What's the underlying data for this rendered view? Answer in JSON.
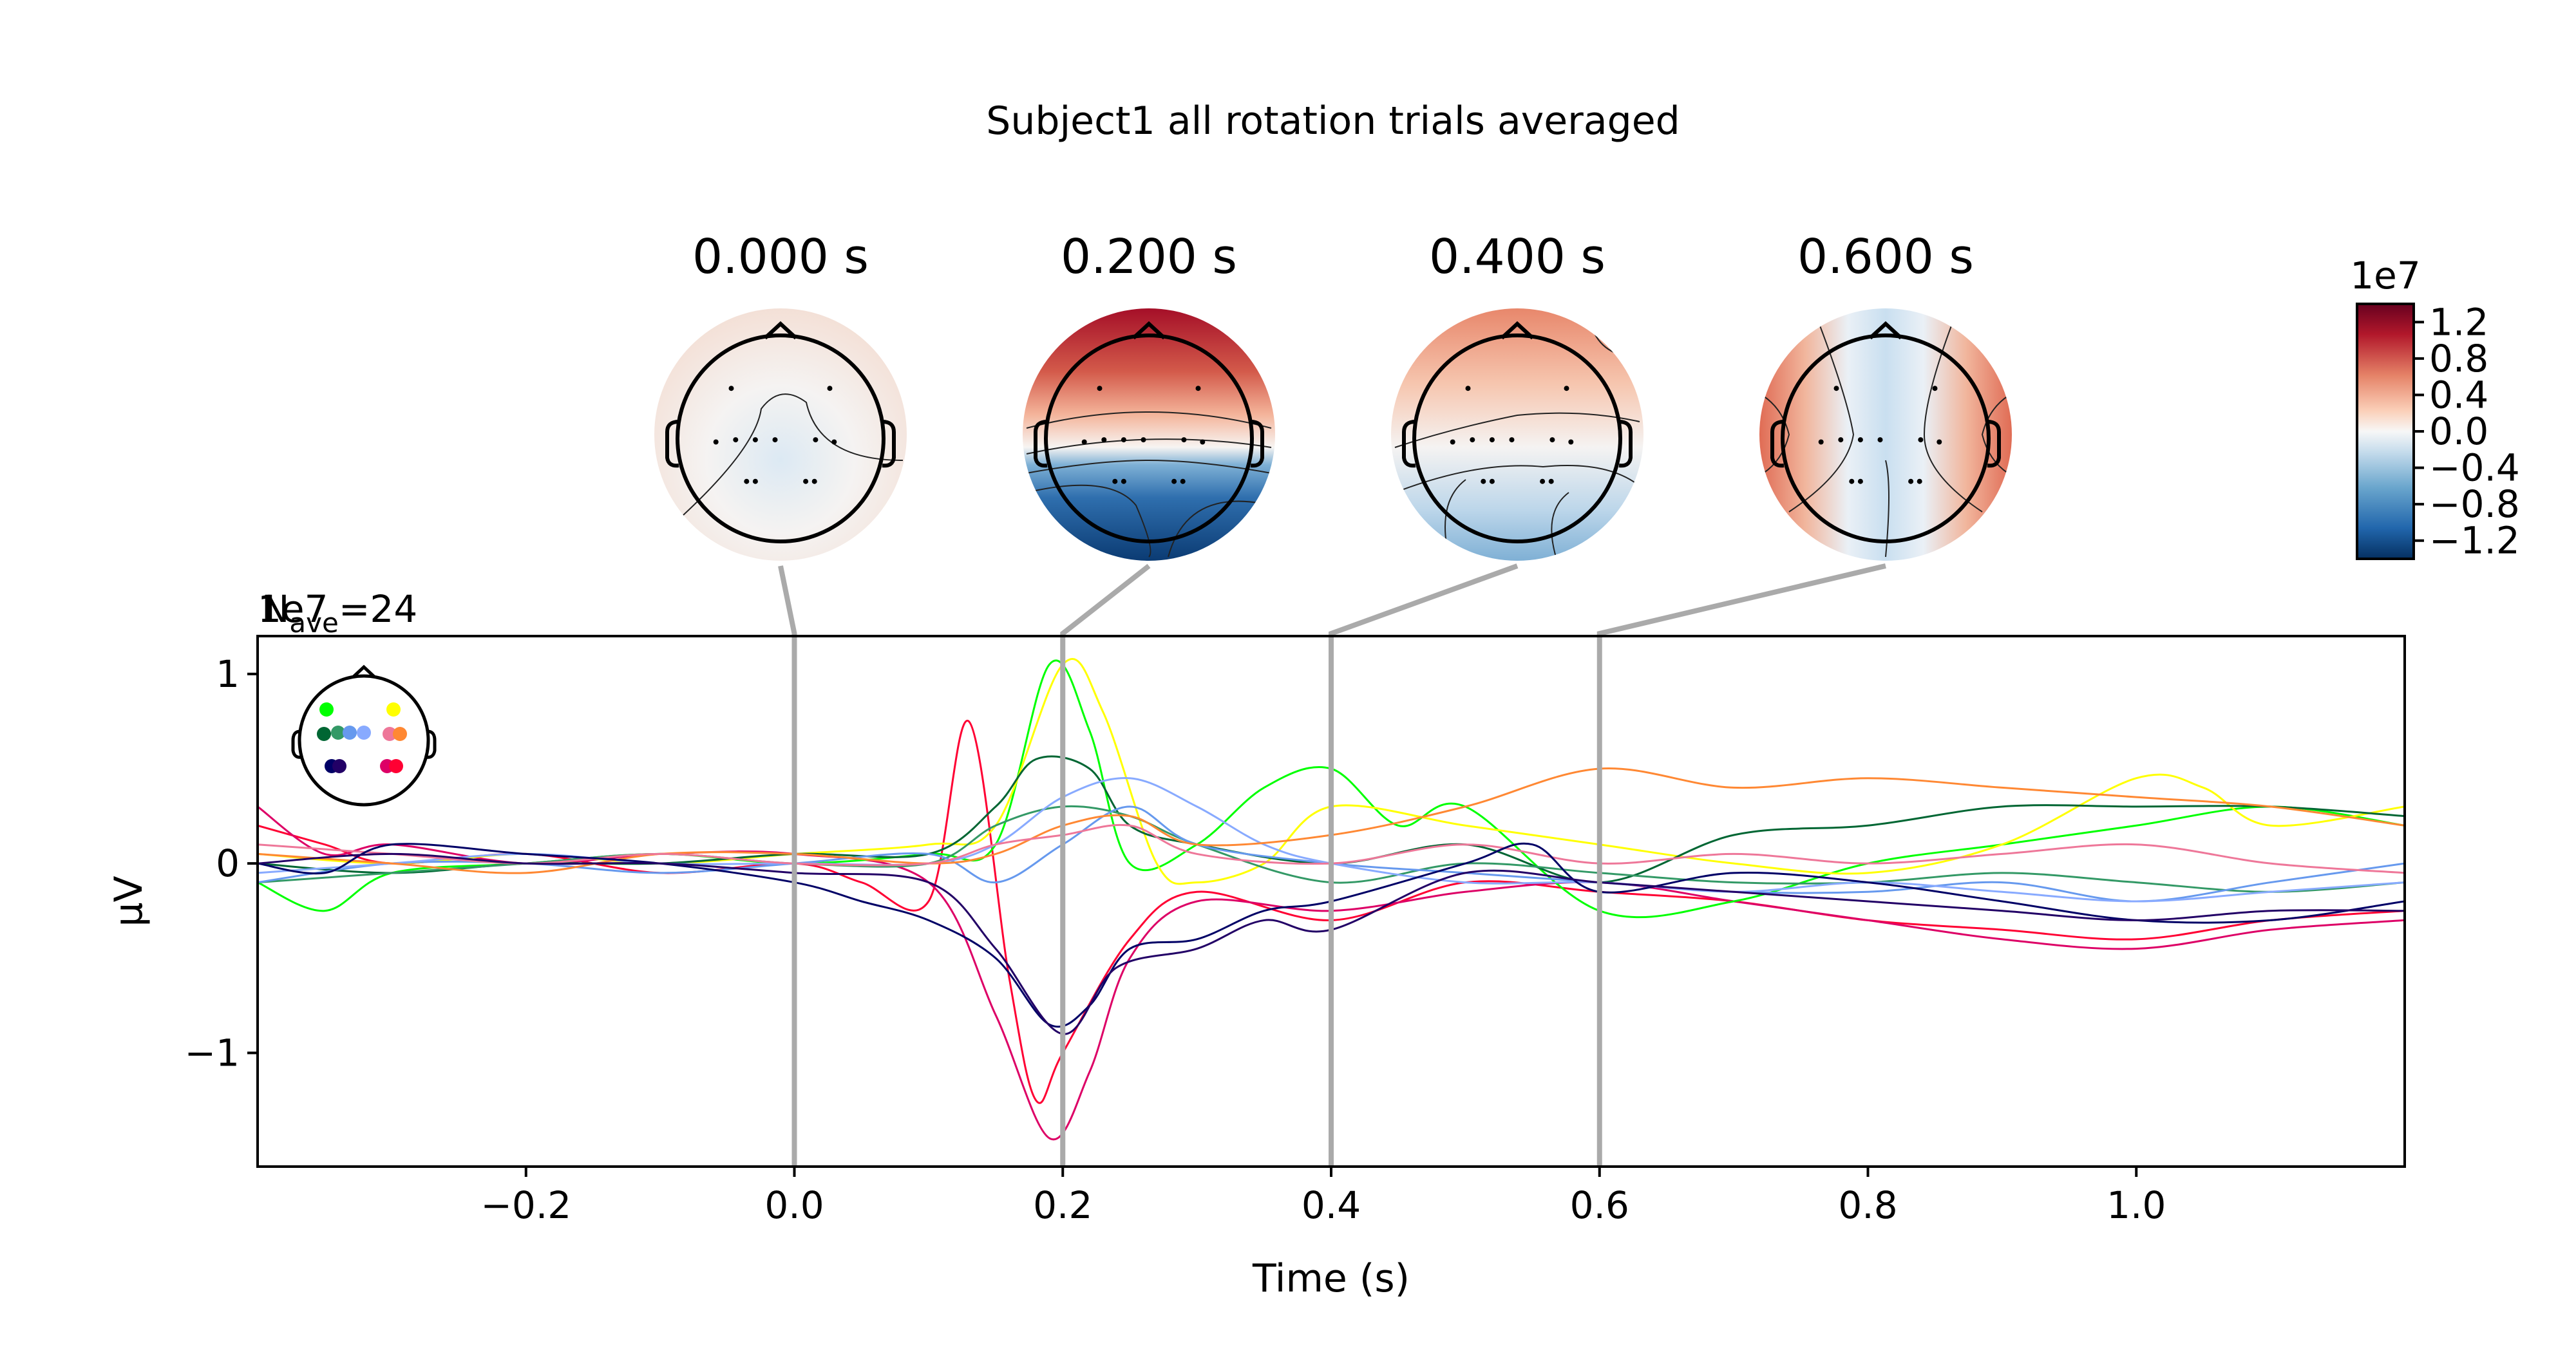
{
  "chart_data": {
    "type": "line",
    "title": "Subject1 all rotation trials averaged",
    "xlabel": "Time (s)",
    "ylabel": "µV",
    "xlim": [
      -0.4,
      1.2
    ],
    "ylim": [
      -1.6,
      1.2
    ],
    "y_scale_label": "1e7",
    "nave_label": "N",
    "nave_sub": "ave",
    "nave_value": "=24",
    "x_ticks": [
      -0.2,
      0.0,
      0.2,
      0.4,
      0.6,
      0.8,
      1.0
    ],
    "x_tick_labels": [
      "−0.2",
      "0.0",
      "0.2",
      "0.4",
      "0.6",
      "0.8",
      "1.0"
    ],
    "y_ticks": [
      -1,
      0,
      1
    ],
    "y_tick_labels": [
      "−1",
      "0",
      "1"
    ],
    "grid": false,
    "legend": "head inset top-left with colored sensor dots",
    "time_markers": [
      0.0,
      0.2,
      0.4,
      0.6
    ],
    "marker_color": "#aaaaaa",
    "series": [
      {
        "color": "#ff0033",
        "points": [
          [
            -0.4,
            0.2
          ],
          [
            -0.35,
            0.1
          ],
          [
            -0.3,
            0.0
          ],
          [
            -0.2,
            0.05
          ],
          [
            -0.1,
            -0.05
          ],
          [
            0.0,
            0.0
          ],
          [
            0.05,
            -0.1
          ],
          [
            0.1,
            -0.2
          ],
          [
            0.13,
            0.75
          ],
          [
            0.16,
            -0.6
          ],
          [
            0.18,
            -1.25
          ],
          [
            0.2,
            -1.0
          ],
          [
            0.25,
            -0.4
          ],
          [
            0.3,
            -0.15
          ],
          [
            0.4,
            -0.3
          ],
          [
            0.5,
            -0.1
          ],
          [
            0.6,
            -0.15
          ],
          [
            0.7,
            -0.2
          ],
          [
            0.8,
            -0.3
          ],
          [
            0.9,
            -0.35
          ],
          [
            1.0,
            -0.4
          ],
          [
            1.1,
            -0.3
          ],
          [
            1.2,
            -0.25
          ]
        ]
      },
      {
        "color": "#dd0066",
        "points": [
          [
            -0.4,
            0.3
          ],
          [
            -0.35,
            0.05
          ],
          [
            -0.3,
            0.1
          ],
          [
            -0.2,
            0.0
          ],
          [
            -0.1,
            0.05
          ],
          [
            0.0,
            0.05
          ],
          [
            0.1,
            -0.1
          ],
          [
            0.15,
            -0.8
          ],
          [
            0.19,
            -1.45
          ],
          [
            0.22,
            -1.1
          ],
          [
            0.25,
            -0.5
          ],
          [
            0.3,
            -0.2
          ],
          [
            0.4,
            -0.25
          ],
          [
            0.5,
            -0.15
          ],
          [
            0.6,
            -0.1
          ],
          [
            0.7,
            -0.2
          ],
          [
            0.8,
            -0.3
          ],
          [
            0.9,
            -0.4
          ],
          [
            1.0,
            -0.45
          ],
          [
            1.1,
            -0.35
          ],
          [
            1.2,
            -0.3
          ]
        ]
      },
      {
        "color": "#00ff00",
        "points": [
          [
            -0.4,
            -0.1
          ],
          [
            -0.35,
            -0.25
          ],
          [
            -0.3,
            -0.05
          ],
          [
            -0.2,
            0.0
          ],
          [
            -0.1,
            0.05
          ],
          [
            0.0,
            0.0
          ],
          [
            0.1,
            0.05
          ],
          [
            0.15,
            0.1
          ],
          [
            0.19,
            1.05
          ],
          [
            0.22,
            0.7
          ],
          [
            0.25,
            0.0
          ],
          [
            0.3,
            0.1
          ],
          [
            0.35,
            0.4
          ],
          [
            0.4,
            0.5
          ],
          [
            0.45,
            0.2
          ],
          [
            0.5,
            0.3
          ],
          [
            0.6,
            -0.25
          ],
          [
            0.7,
            -0.2
          ],
          [
            0.8,
            0.0
          ],
          [
            0.9,
            0.1
          ],
          [
            1.0,
            0.2
          ],
          [
            1.1,
            0.3
          ],
          [
            1.2,
            0.2
          ]
        ]
      },
      {
        "color": "#ffff00",
        "points": [
          [
            -0.4,
            0.05
          ],
          [
            -0.3,
            0.0
          ],
          [
            -0.2,
            0.05
          ],
          [
            -0.1,
            0.0
          ],
          [
            0.0,
            0.05
          ],
          [
            0.1,
            0.1
          ],
          [
            0.15,
            0.2
          ],
          [
            0.2,
            1.05
          ],
          [
            0.23,
            0.8
          ],
          [
            0.27,
            0.0
          ],
          [
            0.3,
            -0.1
          ],
          [
            0.35,
            0.0
          ],
          [
            0.4,
            0.3
          ],
          [
            0.5,
            0.2
          ],
          [
            0.6,
            0.1
          ],
          [
            0.7,
            0.0
          ],
          [
            0.8,
            -0.05
          ],
          [
            0.9,
            0.1
          ],
          [
            1.0,
            0.45
          ],
          [
            1.05,
            0.4
          ],
          [
            1.1,
            0.2
          ],
          [
            1.2,
            0.3
          ]
        ]
      },
      {
        "color": "#006633",
        "points": [
          [
            -0.4,
            0.0
          ],
          [
            -0.3,
            -0.05
          ],
          [
            -0.2,
            0.0
          ],
          [
            -0.1,
            0.0
          ],
          [
            0.0,
            0.05
          ],
          [
            0.1,
            0.05
          ],
          [
            0.15,
            0.3
          ],
          [
            0.18,
            0.55
          ],
          [
            0.22,
            0.5
          ],
          [
            0.25,
            0.2
          ],
          [
            0.3,
            0.1
          ],
          [
            0.4,
            0.0
          ],
          [
            0.5,
            0.1
          ],
          [
            0.6,
            -0.1
          ],
          [
            0.7,
            0.15
          ],
          [
            0.8,
            0.2
          ],
          [
            0.9,
            0.3
          ],
          [
            1.0,
            0.3
          ],
          [
            1.1,
            0.3
          ],
          [
            1.2,
            0.25
          ]
        ]
      },
      {
        "color": "#339966",
        "points": [
          [
            -0.4,
            -0.1
          ],
          [
            -0.3,
            -0.05
          ],
          [
            -0.2,
            0.0
          ],
          [
            -0.1,
            0.05
          ],
          [
            0.0,
            0.0
          ],
          [
            0.1,
            0.0
          ],
          [
            0.15,
            0.2
          ],
          [
            0.2,
            0.3
          ],
          [
            0.25,
            0.25
          ],
          [
            0.3,
            0.1
          ],
          [
            0.4,
            -0.1
          ],
          [
            0.5,
            0.0
          ],
          [
            0.6,
            -0.05
          ],
          [
            0.7,
            -0.1
          ],
          [
            0.8,
            -0.1
          ],
          [
            0.9,
            -0.05
          ],
          [
            1.0,
            -0.1
          ],
          [
            1.1,
            -0.15
          ],
          [
            1.2,
            -0.1
          ]
        ]
      },
      {
        "color": "#6699ee",
        "points": [
          [
            -0.4,
            -0.1
          ],
          [
            -0.3,
            0.0
          ],
          [
            -0.2,
            0.0
          ],
          [
            -0.1,
            -0.05
          ],
          [
            0.0,
            0.0
          ],
          [
            0.1,
            0.05
          ],
          [
            0.15,
            -0.1
          ],
          [
            0.2,
            0.1
          ],
          [
            0.25,
            0.3
          ],
          [
            0.3,
            0.1
          ],
          [
            0.4,
            0.0
          ],
          [
            0.5,
            -0.05
          ],
          [
            0.6,
            -0.1
          ],
          [
            0.7,
            -0.15
          ],
          [
            0.8,
            -0.15
          ],
          [
            0.9,
            -0.1
          ],
          [
            1.0,
            -0.2
          ],
          [
            1.1,
            -0.1
          ],
          [
            1.2,
            0.0
          ]
        ]
      },
      {
        "color": "#88aaff",
        "points": [
          [
            -0.4,
            -0.05
          ],
          [
            -0.3,
            0.0
          ],
          [
            -0.2,
            0.05
          ],
          [
            -0.1,
            0.0
          ],
          [
            0.0,
            0.0
          ],
          [
            0.1,
            0.0
          ],
          [
            0.15,
            0.1
          ],
          [
            0.2,
            0.35
          ],
          [
            0.25,
            0.45
          ],
          [
            0.3,
            0.3
          ],
          [
            0.35,
            0.1
          ],
          [
            0.4,
            0.0
          ],
          [
            0.5,
            -0.1
          ],
          [
            0.6,
            -0.1
          ],
          [
            0.7,
            -0.15
          ],
          [
            0.8,
            -0.1
          ],
          [
            0.9,
            -0.15
          ],
          [
            1.0,
            -0.2
          ],
          [
            1.1,
            -0.15
          ],
          [
            1.2,
            -0.1
          ]
        ]
      },
      {
        "color": "#ff8833",
        "points": [
          [
            -0.4,
            0.05
          ],
          [
            -0.3,
            0.0
          ],
          [
            -0.2,
            -0.05
          ],
          [
            -0.1,
            0.05
          ],
          [
            0.0,
            0.05
          ],
          [
            0.1,
            0.0
          ],
          [
            0.15,
            0.05
          ],
          [
            0.2,
            0.2
          ],
          [
            0.25,
            0.25
          ],
          [
            0.3,
            0.1
          ],
          [
            0.4,
            0.15
          ],
          [
            0.5,
            0.3
          ],
          [
            0.6,
            0.5
          ],
          [
            0.7,
            0.4
          ],
          [
            0.8,
            0.45
          ],
          [
            0.9,
            0.4
          ],
          [
            1.0,
            0.35
          ],
          [
            1.1,
            0.3
          ],
          [
            1.2,
            0.2
          ]
        ]
      },
      {
        "color": "#ee7799",
        "points": [
          [
            -0.4,
            0.1
          ],
          [
            -0.3,
            0.05
          ],
          [
            -0.2,
            0.0
          ],
          [
            -0.1,
            0.05
          ],
          [
            0.0,
            0.0
          ],
          [
            0.1,
            0.0
          ],
          [
            0.15,
            0.1
          ],
          [
            0.2,
            0.15
          ],
          [
            0.25,
            0.2
          ],
          [
            0.3,
            0.05
          ],
          [
            0.4,
            0.0
          ],
          [
            0.5,
            0.1
          ],
          [
            0.6,
            0.0
          ],
          [
            0.7,
            0.05
          ],
          [
            0.8,
            0.0
          ],
          [
            0.9,
            0.05
          ],
          [
            1.0,
            0.1
          ],
          [
            1.1,
            0.0
          ],
          [
            1.2,
            -0.05
          ]
        ]
      },
      {
        "color": "#000066",
        "points": [
          [
            -0.4,
            0.0
          ],
          [
            -0.35,
            -0.05
          ],
          [
            -0.3,
            0.1
          ],
          [
            -0.2,
            0.05
          ],
          [
            -0.1,
            0.0
          ],
          [
            0.0,
            -0.1
          ],
          [
            0.05,
            -0.2
          ],
          [
            0.1,
            -0.3
          ],
          [
            0.15,
            -0.5
          ],
          [
            0.19,
            -0.85
          ],
          [
            0.22,
            -0.75
          ],
          [
            0.25,
            -0.45
          ],
          [
            0.3,
            -0.4
          ],
          [
            0.35,
            -0.25
          ],
          [
            0.4,
            -0.2
          ],
          [
            0.5,
            0.0
          ],
          [
            0.55,
            0.1
          ],
          [
            0.6,
            -0.15
          ],
          [
            0.7,
            -0.05
          ],
          [
            0.8,
            -0.1
          ],
          [
            0.9,
            -0.2
          ],
          [
            1.0,
            -0.3
          ],
          [
            1.1,
            -0.3
          ],
          [
            1.2,
            -0.2
          ]
        ]
      },
      {
        "color": "#220066",
        "points": [
          [
            -0.4,
            0.0
          ],
          [
            -0.3,
            0.05
          ],
          [
            -0.2,
            0.0
          ],
          [
            -0.1,
            0.0
          ],
          [
            0.0,
            -0.05
          ],
          [
            0.1,
            -0.1
          ],
          [
            0.15,
            -0.45
          ],
          [
            0.2,
            -0.9
          ],
          [
            0.24,
            -0.55
          ],
          [
            0.3,
            -0.45
          ],
          [
            0.35,
            -0.3
          ],
          [
            0.4,
            -0.35
          ],
          [
            0.5,
            -0.05
          ],
          [
            0.6,
            -0.1
          ],
          [
            0.7,
            -0.15
          ],
          [
            0.8,
            -0.2
          ],
          [
            0.9,
            -0.25
          ],
          [
            1.0,
            -0.3
          ],
          [
            1.1,
            -0.25
          ],
          [
            1.2,
            -0.25
          ]
        ]
      }
    ]
  },
  "topomaps": [
    {
      "label": "0.000 s",
      "time": 0.0
    },
    {
      "label": "0.200 s",
      "time": 0.2
    },
    {
      "label": "0.400 s",
      "time": 0.4
    },
    {
      "label": "0.600 s",
      "time": 0.6
    }
  ],
  "colorbar": {
    "scale_label": "1e7",
    "tick_labels": [
      "1.2",
      "0.8",
      "0.4",
      "0.0",
      "−0.4",
      "−0.8",
      "−1.2"
    ],
    "tick_values": [
      1.2,
      0.8,
      0.4,
      0.0,
      -0.4,
      -0.8,
      -1.2
    ],
    "range": [
      -1.4,
      1.4
    ],
    "colormap": "RdBu_r"
  },
  "colors": {
    "topo_red_dark": "#b2182b",
    "topo_red": "#e8846a",
    "topo_white": "#f7f2f0",
    "topo_blue": "#7fb1d6",
    "topo_blue_dark": "#1f5a9a"
  }
}
